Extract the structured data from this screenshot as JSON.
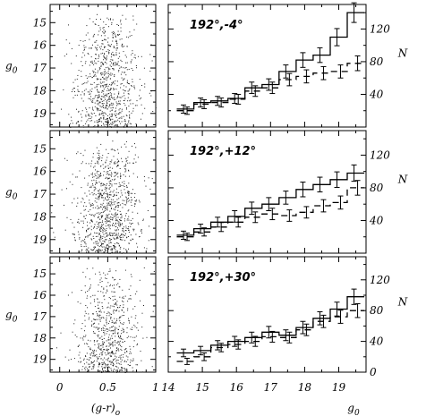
{
  "chart_data": [
    {
      "type": "scatter",
      "panel": "cmd-top",
      "xlabel": "(g-r)",
      "xlabel_sub": "o",
      "ylabel": "g",
      "ylabel_sub": "0",
      "xlim": [
        -0.1,
        1.0
      ],
      "ylim": [
        19.6,
        14.2
      ],
      "x_ticks": [
        "0",
        "0.5",
        "1"
      ],
      "y_ticks": [
        "15",
        "16",
        "17",
        "18",
        "19"
      ],
      "y_tick_values": [
        15,
        16,
        17,
        18,
        19
      ],
      "point_distribution": {
        "x_center": 0.5,
        "x_spread": 0.15,
        "y_range": [
          14.6,
          19.6
        ],
        "density_increasing_toward": "faint",
        "count": 850
      }
    },
    {
      "type": "scatter",
      "panel": "cmd-middle",
      "ylabel": "g",
      "ylabel_sub": "0",
      "xlim": [
        -0.1,
        1.0
      ],
      "ylim": [
        19.6,
        14.2
      ],
      "y_ticks": [
        "15",
        "16",
        "17",
        "18",
        "19"
      ],
      "y_tick_values": [
        15,
        16,
        17,
        18,
        19
      ],
      "point_distribution": {
        "x_center": 0.5,
        "x_spread": 0.16,
        "y_range": [
          14.6,
          19.6
        ],
        "density_increasing_toward": "faint",
        "count": 950
      }
    },
    {
      "type": "scatter",
      "panel": "cmd-bottom",
      "ylabel": "g",
      "ylabel_sub": "0",
      "xlim": [
        -0.1,
        1.0
      ],
      "ylim": [
        19.6,
        14.2
      ],
      "y_ticks": [
        "15",
        "16",
        "17",
        "18",
        "19"
      ],
      "y_tick_values": [
        15,
        16,
        17,
        18,
        19
      ],
      "point_distribution": {
        "x_center": 0.5,
        "x_spread": 0.14,
        "y_range": [
          14.6,
          19.6
        ],
        "density_increasing_toward": "faint",
        "count": 700
      }
    },
    {
      "type": "line",
      "panel": "hist-top",
      "label": "192°,-4°",
      "ylabel": "N",
      "xlim": [
        14,
        19.8
      ],
      "ylim": [
        0,
        150
      ],
      "y_ticks": [
        "40",
        "80",
        "120"
      ],
      "y_tick_values": [
        40,
        80,
        120
      ],
      "bin_edges": [
        14.25,
        14.75,
        15.25,
        15.75,
        16.25,
        16.75,
        17.25,
        17.75,
        18.25,
        18.75,
        19.25,
        19.75
      ],
      "series": [
        {
          "style": "solid",
          "values": [
            22,
            30,
            32,
            35,
            48,
            52,
            68,
            82,
            88,
            110,
            140
          ],
          "errors": [
            5,
            5.5,
            5.5,
            6,
            7,
            7,
            8,
            9,
            9,
            10.5,
            12
          ]
        },
        {
          "style": "dashed",
          "values": [
            20,
            28,
            30,
            34,
            44,
            48,
            58,
            62,
            66,
            68,
            78
          ],
          "errors": [
            4.5,
            5.5,
            5.5,
            6,
            6.5,
            7,
            7.5,
            8,
            8,
            8,
            9
          ]
        }
      ]
    },
    {
      "type": "line",
      "panel": "hist-middle",
      "label": "192°,+12°",
      "ylabel": "N",
      "xlim": [
        14,
        19.8
      ],
      "ylim": [
        0,
        150
      ],
      "y_ticks": [
        "40",
        "80",
        "120"
      ],
      "y_tick_values": [
        40,
        80,
        120
      ],
      "bin_edges": [
        14.25,
        14.75,
        15.25,
        15.75,
        16.25,
        16.75,
        17.25,
        17.75,
        18.25,
        18.75,
        19.25,
        19.75
      ],
      "series": [
        {
          "style": "solid",
          "values": [
            22,
            30,
            38,
            45,
            55,
            60,
            68,
            78,
            84,
            90,
            98
          ],
          "errors": [
            5,
            5.5,
            6,
            7,
            7.5,
            8,
            8,
            9,
            9,
            9.5,
            10
          ]
        },
        {
          "style": "dashed",
          "values": [
            20,
            26,
            32,
            38,
            44,
            48,
            46,
            50,
            58,
            62,
            80
          ],
          "errors": [
            4.5,
            5,
            5.5,
            6,
            6.5,
            7,
            7,
            7,
            7.5,
            8,
            9
          ]
        }
      ]
    },
    {
      "type": "line",
      "panel": "hist-bottom",
      "label": "192°,+30°",
      "ylabel": "N",
      "xlabel": "g",
      "xlabel_sub": "0",
      "xlim": [
        14,
        19.8
      ],
      "ylim": [
        0,
        150
      ],
      "x_ticks": [
        "14",
        "15",
        "16",
        "17",
        "18",
        "19"
      ],
      "x_tick_values": [
        14,
        15,
        16,
        17,
        18,
        19
      ],
      "y_ticks": [
        "0",
        "40",
        "80",
        "120"
      ],
      "y_tick_values": [
        0,
        40,
        80,
        120
      ],
      "bin_edges": [
        14.25,
        14.75,
        15.25,
        15.75,
        16.25,
        16.75,
        17.25,
        17.75,
        18.25,
        18.75,
        19.25,
        19.75
      ],
      "series": [
        {
          "style": "solid",
          "values": [
            25,
            28,
            35,
            40,
            45,
            52,
            48,
            58,
            70,
            82,
            98
          ],
          "errors": [
            5,
            5.5,
            6,
            6.5,
            7,
            7.5,
            7,
            8,
            8.5,
            9,
            10
          ]
        },
        {
          "style": "dashed",
          "values": [
            14,
            20,
            32,
            36,
            40,
            46,
            45,
            55,
            66,
            72,
            80
          ],
          "errors": [
            4,
            5,
            5.5,
            6,
            6.5,
            7,
            7,
            7.5,
            8,
            8.5,
            9
          ]
        }
      ]
    }
  ]
}
